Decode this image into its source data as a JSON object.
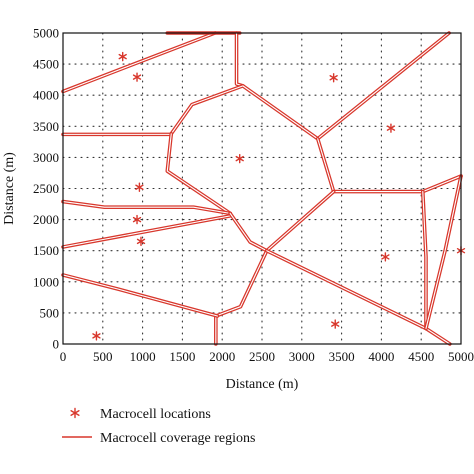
{
  "chart_data": {
    "type": "scatter",
    "xlabel": "Distance (m)",
    "ylabel": "Distance (m)",
    "xlim": [
      0,
      5000
    ],
    "ylim": [
      0,
      5000
    ],
    "xticks": [
      "0",
      "500",
      "1000",
      "1500",
      "2000",
      "2500",
      "3000",
      "3500",
      "4000",
      "4500",
      "5000"
    ],
    "yticks": [
      "0",
      "500",
      "1000",
      "1500",
      "2000",
      "2500",
      "3000",
      "3500",
      "4000",
      "4500",
      "5000"
    ],
    "grid": "dotted",
    "color": "#d8372c",
    "legend": [
      {
        "label": "Macrocell locations",
        "marker": "asterisk"
      },
      {
        "label": "Macrocell coverage regions",
        "marker": "line"
      }
    ],
    "points": [
      [
        980,
        1650
      ],
      [
        420,
        130
      ],
      [
        750,
        4620
      ],
      [
        2220,
        2980
      ],
      [
        3400,
        4280
      ],
      [
        4120,
        3470
      ],
      [
        4050,
        1400
      ],
      [
        3420,
        320
      ],
      [
        930,
        4290
      ],
      [
        960,
        2520
      ],
      [
        930,
        2000
      ],
      [
        5000,
        1500
      ]
    ],
    "boundaries": [
      [
        [
          0,
          4060
        ],
        [
          870,
          4490
        ],
        [
          1910,
          5000
        ]
      ],
      [
        [
          1310,
          5000
        ],
        [
          2220,
          5000
        ]
      ],
      [
        [
          2180,
          5000
        ],
        [
          2180,
          4180
        ],
        [
          2260,
          4150
        ]
      ],
      [
        [
          1360,
          3380
        ],
        [
          1620,
          3850
        ],
        [
          2260,
          4150
        ],
        [
          3200,
          3300
        ],
        [
          4850,
          5000
        ]
      ],
      [
        [
          0,
          3370
        ],
        [
          1360,
          3370
        ]
      ],
      [
        [
          1360,
          3380
        ],
        [
          1310,
          2780
        ],
        [
          2100,
          2100
        ]
      ],
      [
        [
          3200,
          3300
        ],
        [
          3400,
          2450
        ],
        [
          4520,
          2450
        ],
        [
          5000,
          2700
        ]
      ],
      [
        [
          0,
          2290
        ],
        [
          520,
          2200
        ],
        [
          1640,
          2200
        ],
        [
          2100,
          2100
        ]
      ],
      [
        [
          0,
          1560
        ],
        [
          2100,
          2060
        ]
      ],
      [
        [
          2100,
          2100
        ],
        [
          2350,
          1640
        ],
        [
          2560,
          1500
        ],
        [
          3400,
          2450
        ]
      ],
      [
        [
          2560,
          1500
        ],
        [
          2230,
          600
        ],
        [
          1920,
          450
        ],
        [
          1920,
          0
        ]
      ],
      [
        [
          0,
          1110
        ],
        [
          700,
          880
        ],
        [
          1940,
          450
        ]
      ],
      [
        [
          2560,
          1500
        ],
        [
          4560,
          250
        ],
        [
          4860,
          0
        ]
      ],
      [
        [
          4520,
          2450
        ],
        [
          4560,
          1400
        ],
        [
          4560,
          250
        ]
      ],
      [
        [
          5000,
          2700
        ],
        [
          4800,
          1500
        ],
        [
          4560,
          250
        ]
      ]
    ]
  }
}
